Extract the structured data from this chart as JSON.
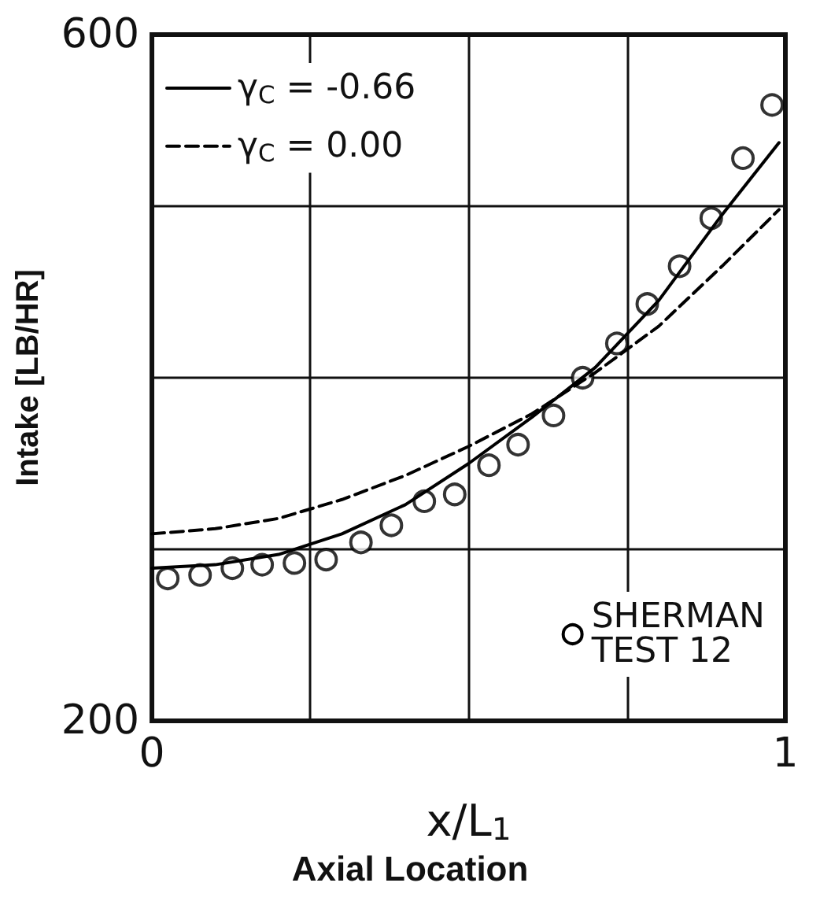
{
  "chart_data": {
    "type": "line",
    "xlabel": "x/L$_{1}$",
    "ylabel": "Intake [LB/HR]",
    "annotations": [
      "Axial Location"
    ],
    "xlim": [
      0,
      1
    ],
    "ylim": [
      200,
      600
    ],
    "xticks": [
      0,
      {
        "value": 0.25,
        "label": null
      },
      {
        "value": 0.5,
        "label": null
      },
      {
        "value": 0.75,
        "label": null
      },
      1
    ],
    "yticks": [
      200,
      {
        "value": 300,
        "label": null
      },
      {
        "value": 400,
        "label": null
      },
      {
        "value": 500,
        "label": null
      },
      600
    ],
    "grid": true,
    "legend": "top left",
    "marker": "none",
    "series": [
      {
        "name": "γ$_{C}$ = -0.66",
        "line_style": "solid",
        "color": "#000000",
        "x": [
          0,
          0.1,
          0.2,
          0.3,
          0.4,
          0.5,
          0.6,
          0.7,
          0.8,
          0.9,
          0.99
        ],
        "values": [
          289,
          291,
          297,
          309,
          326,
          350,
          377,
          406,
          445,
          495,
          537
        ]
      },
      {
        "name": "γ$_{C}$ = 0.00",
        "line_style": "dashed",
        "color": "#000000",
        "x": [
          0,
          0.1,
          0.2,
          0.3,
          0.4,
          0.5,
          0.6,
          0.7,
          0.8,
          0.9,
          0.99
        ],
        "values": [
          309,
          312,
          318,
          329,
          343,
          360,
          379,
          403,
          430,
          465,
          498
        ]
      },
      {
        "name": "SHERMAN\nTEST 12",
        "type": "scatter",
        "marker": "circle",
        "color": "#000000",
        "x": [
          0.025,
          0.076,
          0.127,
          0.174,
          0.225,
          0.275,
          0.33,
          0.378,
          0.43,
          0.478,
          0.532,
          0.578,
          0.634,
          0.68,
          0.734,
          0.782,
          0.833,
          0.883,
          0.933,
          0.979
        ],
        "values": [
          283,
          285,
          289,
          291,
          292,
          294,
          304,
          314,
          328,
          332,
          349,
          361,
          378,
          400,
          420,
          443,
          465,
          493,
          528,
          559
        ]
      }
    ]
  }
}
